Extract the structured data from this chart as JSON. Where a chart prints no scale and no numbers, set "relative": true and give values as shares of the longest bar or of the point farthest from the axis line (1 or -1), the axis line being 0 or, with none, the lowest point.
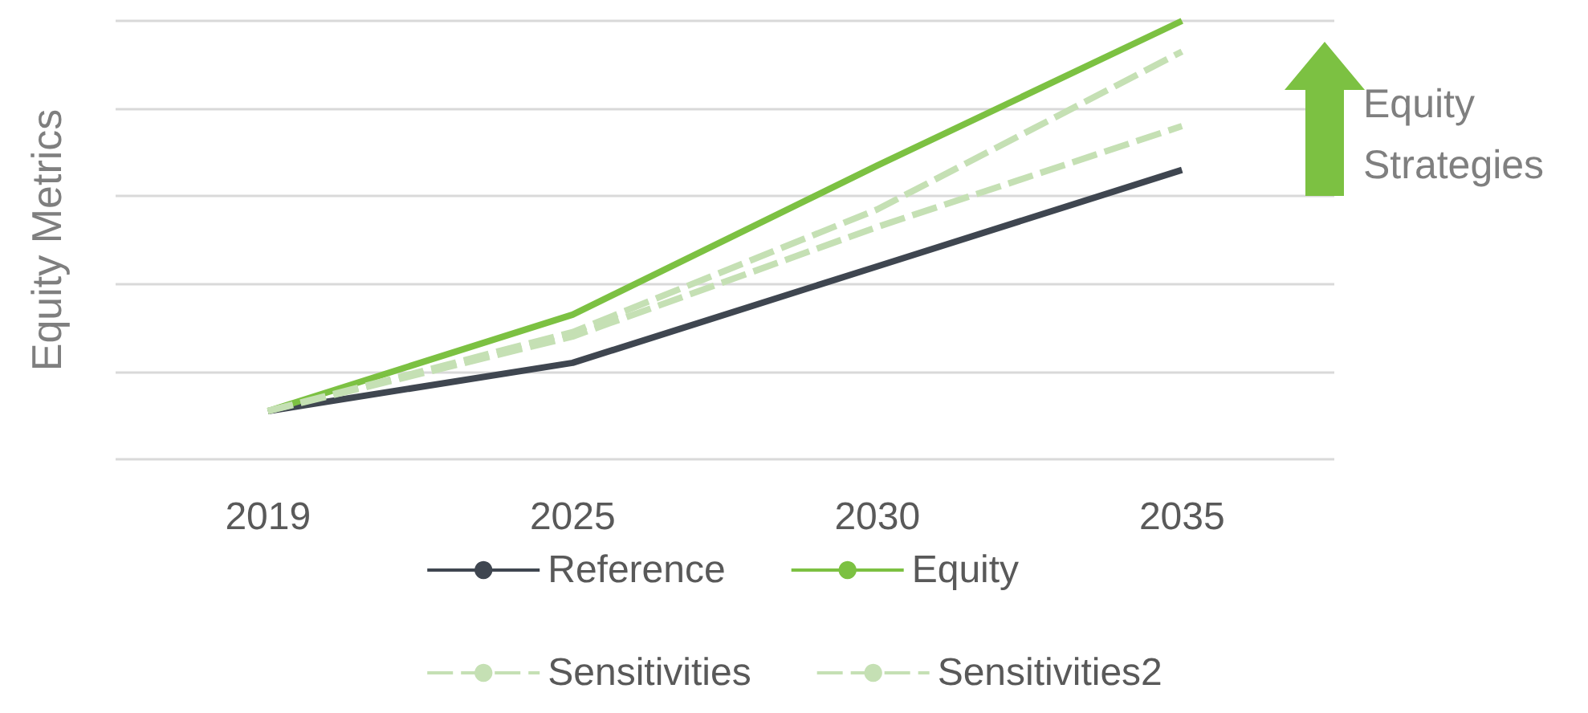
{
  "chart_data": {
    "type": "line",
    "ylabel": "Equity Metrics",
    "categories": [
      "2019",
      "2025",
      "2030",
      "2035"
    ],
    "relative": true,
    "grid": "y",
    "legend": "bottom",
    "marker": "none",
    "series": [
      {
        "name": "Reference",
        "color": "#3f4650",
        "values": [
          0.11,
          0.22,
          0.44,
          0.66
        ],
        "line_style": "solid"
      },
      {
        "name": "Equity",
        "color": "#7cc142",
        "values": [
          0.11,
          0.33,
          0.67,
          1
        ],
        "line_style": "solid"
      },
      {
        "name": "Sensitivities",
        "color": "#c5e0b4",
        "values": [
          0.11,
          0.29,
          0.57,
          0.93
        ],
        "line_style": "dashed"
      },
      {
        "name": "Sensitivities2",
        "color": "#c5e0b4",
        "values": [
          0.11,
          0.28,
          0.53,
          0.76
        ],
        "line_style": "dashed"
      }
    ],
    "annotations": [
      "Equity Strategies"
    ]
  }
}
